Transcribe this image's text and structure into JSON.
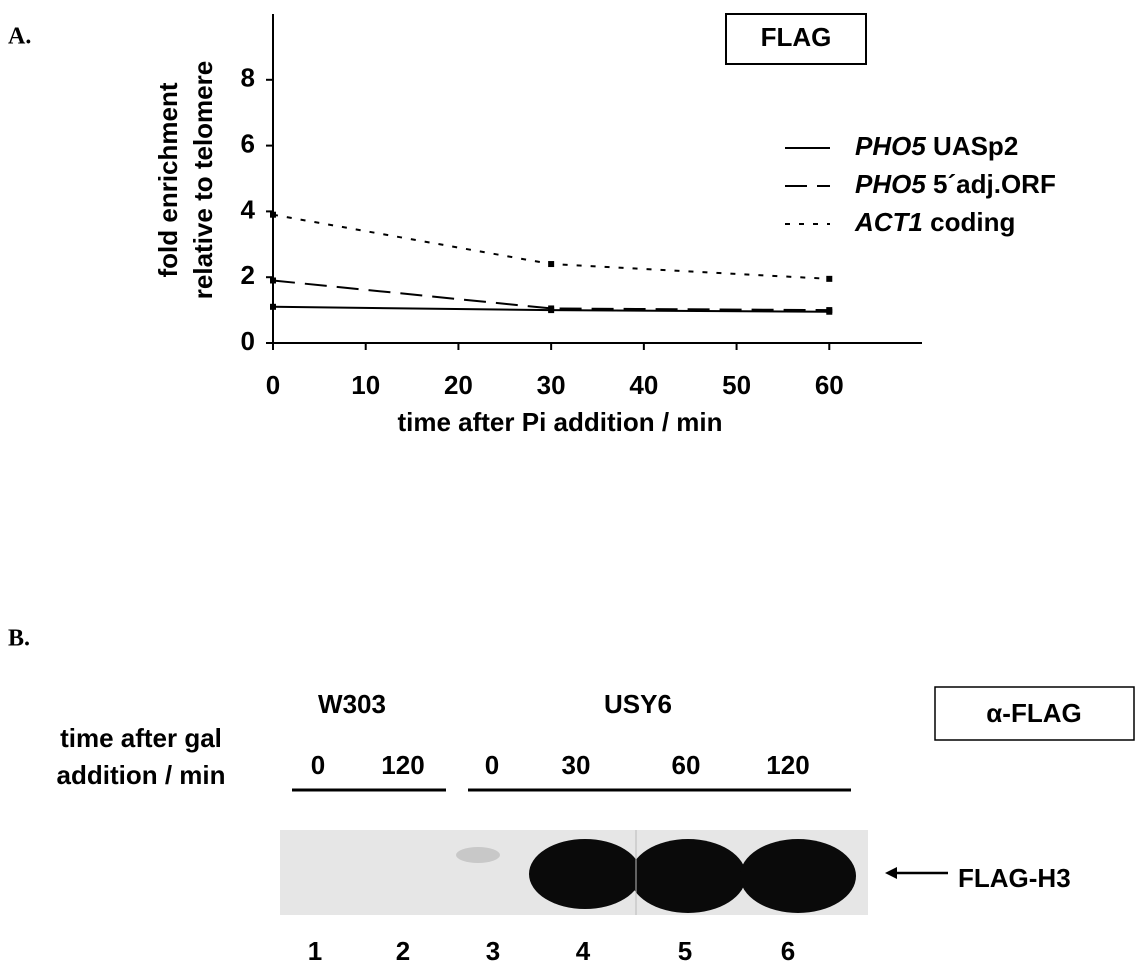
{
  "panel_a": {
    "label": "A."
  },
  "chart_data": {
    "type": "line",
    "box_label": "FLAG",
    "xlabel": "time after Pi addition / min",
    "ylabel": [
      "fold enrichment",
      "relative to telomere"
    ],
    "x": [
      0,
      30,
      60
    ],
    "series": [
      {
        "name": "PHO5 UASp2",
        "color": "#000000",
        "dash": "solid",
        "values": [
          1.1,
          1.0,
          0.95
        ]
      },
      {
        "name": "PHO5 5´adj.ORF",
        "color": "#000000",
        "dash": "dashed",
        "values": [
          1.9,
          1.05,
          1.0
        ]
      },
      {
        "name": "ACT1 coding",
        "color": "#000000",
        "dash": "dotted",
        "values": [
          3.9,
          2.4,
          1.95
        ]
      }
    ],
    "xlim": [
      0,
      70
    ],
    "xticks": [
      0,
      10,
      20,
      30,
      40,
      50,
      60
    ],
    "ylim": [
      0,
      10
    ],
    "yticks": [
      0,
      2,
      4,
      6,
      8
    ]
  },
  "panel_b": {
    "label": "B.",
    "box_label": "α-FLAG",
    "time_label": [
      "time after gal",
      "addition / min"
    ],
    "strains": [
      "W303",
      "USY6"
    ],
    "times": [
      "0",
      "120",
      "0",
      "30",
      "60",
      "120"
    ],
    "lanes": [
      "1",
      "2",
      "3",
      "4",
      "5",
      "6"
    ],
    "band_label": "FLAG-H3"
  }
}
